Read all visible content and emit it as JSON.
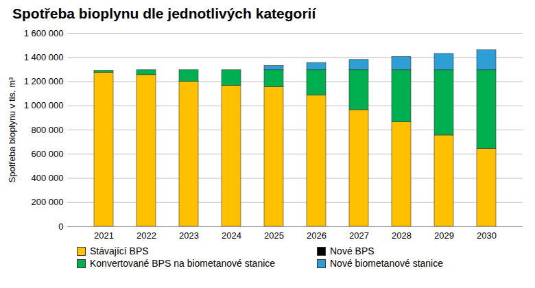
{
  "chart_data": {
    "type": "bar",
    "stacked": true,
    "title": "Spotřeba bioplynu dle jednotlivých kategorií",
    "y_label": "Spotřeba bioplynu v tis. m³",
    "categories": [
      "2021",
      "2022",
      "2023",
      "2024",
      "2025",
      "2026",
      "2027",
      "2028",
      "2029",
      "2030"
    ],
    "series": [
      {
        "name": "Stávající BPS",
        "color": "#ffc000",
        "values": [
          1275000,
          1255000,
          1200000,
          1165000,
          1155000,
          1085000,
          965000,
          865000,
          755000,
          645000
        ]
      },
      {
        "name": "Nové BPS",
        "color": "#000000",
        "values": [
          0,
          0,
          0,
          0,
          0,
          0,
          0,
          0,
          0,
          0
        ]
      },
      {
        "name": "Konvertované BPS na biometanové stanice",
        "color": "#00b050",
        "values": [
          15000,
          40000,
          95000,
          130000,
          140000,
          210000,
          330000,
          430000,
          540000,
          650000
        ]
      },
      {
        "name": "Nové biometanové stanice",
        "color": "#2e9fd4",
        "values": [
          0,
          0,
          0,
          0,
          35000,
          60000,
          85000,
          110000,
          135000,
          165000
        ]
      }
    ],
    "ylim": [
      0,
      1600000
    ],
    "yticks": [
      0,
      {
        "value": 200000,
        "label": "200 000"
      },
      {
        "value": 400000,
        "label": "400 000"
      },
      {
        "value": 600000,
        "label": "600 000"
      },
      {
        "value": 800000,
        "label": "800 000"
      },
      {
        "value": 1000000,
        "label": "1 000 000"
      },
      {
        "value": 1200000,
        "label": "1 200 000"
      },
      {
        "value": 1400000,
        "label": "1 400 000"
      },
      {
        "value": 1600000,
        "label": "1 600 000"
      }
    ],
    "grid": true,
    "legend": "bottom"
  }
}
